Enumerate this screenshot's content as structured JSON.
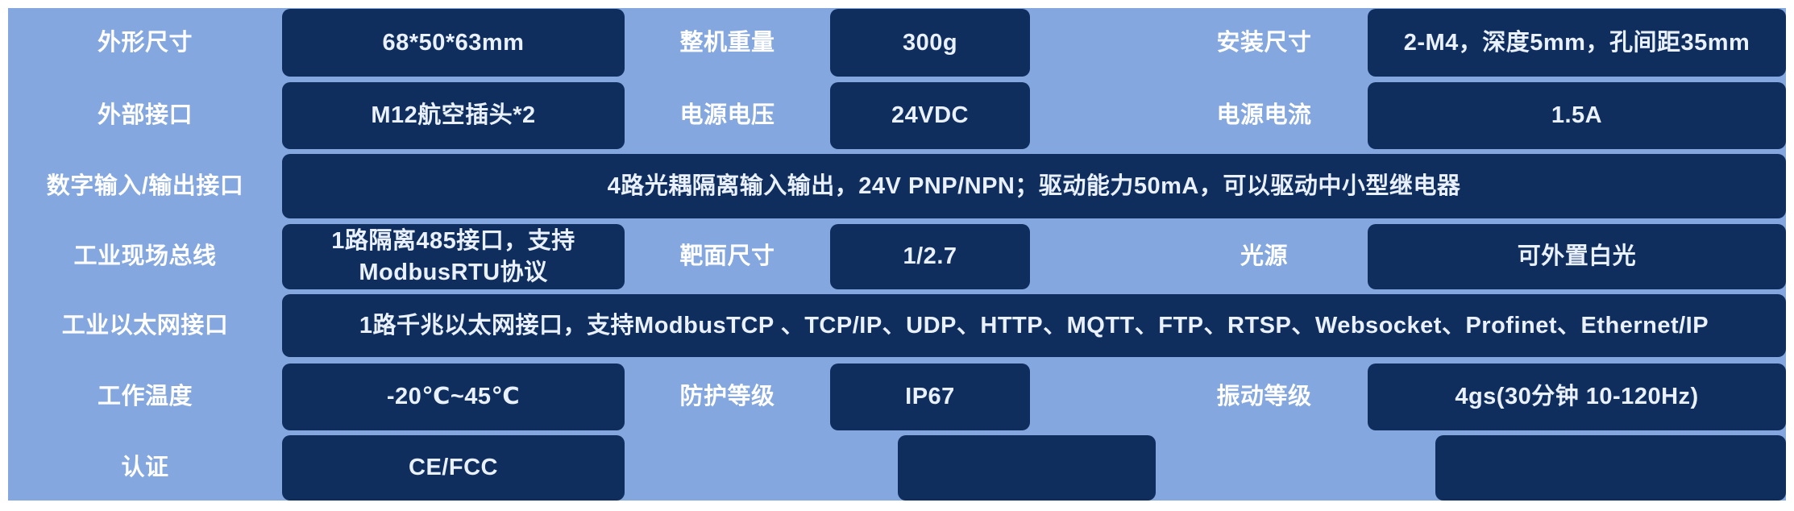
{
  "palette": {
    "page_bg": "#ffffff",
    "table_bg": "#83a7de",
    "cell_bg": "#0f2e5e",
    "label_text": "#ffffff",
    "value_text": "#e9f0fe"
  },
  "table": {
    "rows": [
      {
        "cells": [
          {
            "text": "外形尺寸"
          },
          {
            "text": "68*50*63mm"
          },
          {
            "text": "整机重量"
          },
          {
            "text": "300g"
          },
          {
            "text": "安装尺寸"
          },
          {
            "text": "2-M4，深度5mm，孔间距35mm"
          }
        ]
      },
      {
        "cells": [
          {
            "text": "外部接口"
          },
          {
            "text": "M12航空插头*2"
          },
          {
            "text": "电源电压"
          },
          {
            "text": "24VDC"
          },
          {
            "text": "电源电流"
          },
          {
            "text": "1.5A"
          }
        ]
      },
      {
        "cells": [
          {
            "text": "数字输入/输出接口"
          },
          {
            "text": "4路光耦隔离输入输出，24V PNP/NPN；驱动能力50mA，可以驱动中小型继电器"
          }
        ]
      },
      {
        "cells": [
          {
            "text": "工业现场总线"
          },
          {
            "text": "1路隔离485接口，支持ModbusRTU协议"
          },
          {
            "text": "靶面尺寸"
          },
          {
            "text": "1/2.7"
          },
          {
            "text": "光源"
          },
          {
            "text": "可外置白光"
          }
        ]
      },
      {
        "cells": [
          {
            "text": "工业以太网接口"
          },
          {
            "text": "1路千兆以太网接口，支持ModbusTCP 、TCP/IP、UDP、HTTP、MQTT、FTP、RTSP、Websocket、Profinet、Ethernet/IP"
          }
        ]
      },
      {
        "cells": [
          {
            "text": "工作温度"
          },
          {
            "text": "-20℃~45℃"
          },
          {
            "text": "防护等级"
          },
          {
            "text": "IP67"
          },
          {
            "text": "振动等级"
          },
          {
            "text": "4gs(30分钟 10-120Hz)"
          }
        ]
      },
      {
        "cells": [
          {
            "text": "认证"
          },
          {
            "text": "CE/FCC"
          },
          {
            "text": ""
          },
          {
            "text": ""
          }
        ]
      }
    ]
  }
}
